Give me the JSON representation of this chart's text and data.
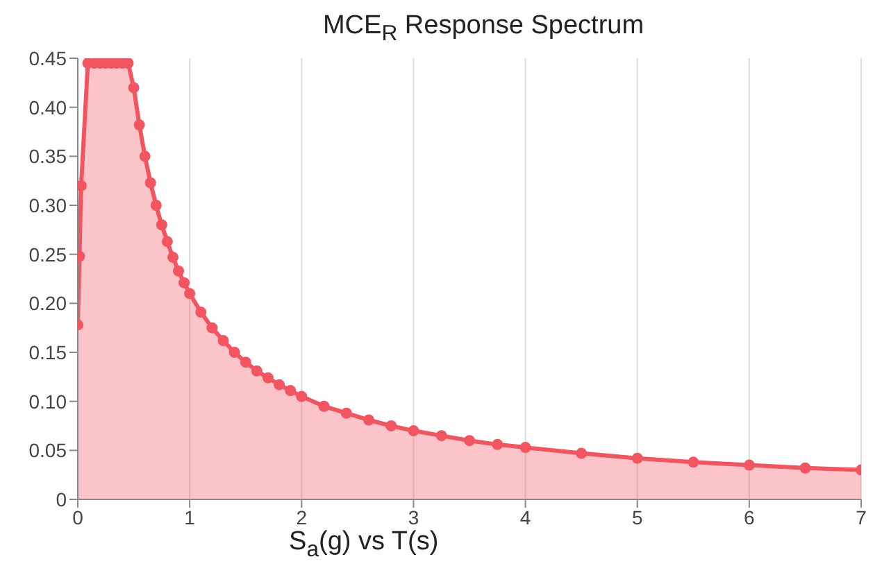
{
  "chart_data": {
    "type": "area",
    "title": "MCE$_{R}$ Response Spectrum",
    "xlabel": "S$_{a}$(g) vs T(s)",
    "x": [
      0,
      0.015,
      0.03,
      0.09,
      0.15,
      0.2,
      0.25,
      0.3,
      0.35,
      0.4,
      0.45,
      0.5,
      0.55,
      0.6,
      0.65,
      0.7,
      0.75,
      0.8,
      0.85,
      0.9,
      0.95,
      1.0,
      1.1,
      1.2,
      1.3,
      1.4,
      1.5,
      1.6,
      1.7,
      1.8,
      1.9,
      2.0,
      2.2,
      2.4,
      2.6,
      2.8,
      3.0,
      3.25,
      3.5,
      3.75,
      4.0,
      4.5,
      5.0,
      5.5,
      6.0,
      6.5,
      7.0
    ],
    "series": [
      {
        "color": "#f25560",
        "values": [
          0.178,
          0.248,
          0.32,
          0.445,
          0.445,
          0.445,
          0.445,
          0.445,
          0.445,
          0.445,
          0.445,
          0.42,
          0.382,
          0.35,
          0.323,
          0.3,
          0.28,
          0.263,
          0.247,
          0.233,
          0.221,
          0.21,
          0.191,
          0.175,
          0.162,
          0.15,
          0.14,
          0.131,
          0.124,
          0.117,
          0.111,
          0.105,
          0.095,
          0.088,
          0.081,
          0.075,
          0.07,
          0.065,
          0.06,
          0.056,
          0.053,
          0.047,
          0.042,
          0.038,
          0.035,
          0.032,
          0.03
        ]
      }
    ],
    "xlim": [
      0,
      7
    ],
    "xticks": [
      0,
      1,
      2,
      3,
      4,
      5,
      6,
      7
    ],
    "ylim": [
      0,
      0.45
    ],
    "yticks": [
      0,
      0.05,
      {
        "value": 0.1,
        "label": "0.10"
      },
      0.15,
      {
        "value": 0.2,
        "label": "0.20"
      },
      0.25,
      {
        "value": 0.3,
        "label": "0.30"
      },
      0.35,
      {
        "value": 0.4,
        "label": "0.40"
      },
      0.45
    ],
    "grid": "x",
    "marker": "circle"
  }
}
